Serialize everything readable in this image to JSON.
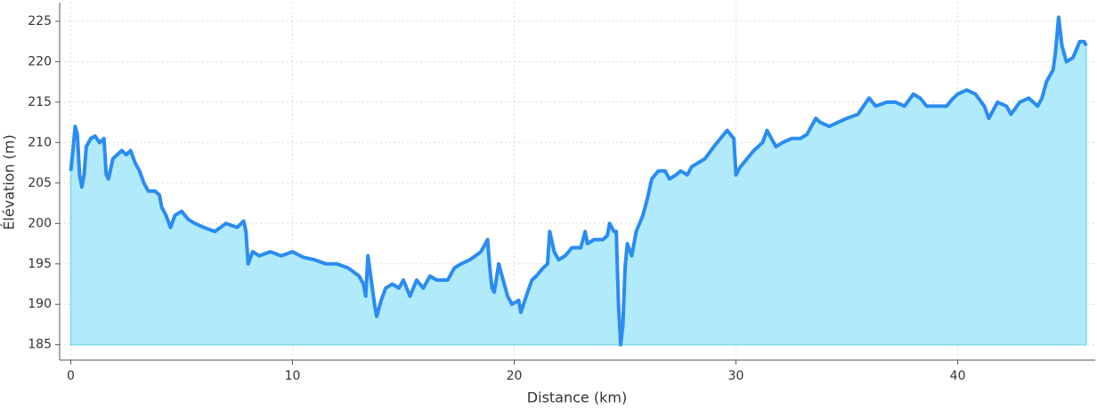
{
  "chart_data": {
    "type": "area-line",
    "x_label": "Distance (km)",
    "y_label": "Élévation (m)",
    "line_color": "#2a8cf2",
    "fill_color": "#b0eafb",
    "fill_edge_color": "#7fdcea",
    "grid": true,
    "xlim": [
      -0.5,
      46.2
    ],
    "xticks": [
      0,
      10,
      20,
      30,
      40
    ],
    "ylim": [
      183.1,
      227.3
    ],
    "yticks": [
      185,
      190,
      195,
      200,
      205,
      210,
      215,
      220,
      225
    ],
    "x": [
      0,
      0.1,
      0.2,
      0.3,
      0.4,
      0.5,
      0.6,
      0.7,
      0.9,
      1.1,
      1.3,
      1.5,
      1.6,
      1.7,
      1.9,
      2.1,
      2.3,
      2.5,
      2.7,
      2.9,
      3.1,
      3.3,
      3.5,
      3.8,
      4.0,
      4.1,
      4.3,
      4.5,
      4.7,
      5.0,
      5.3,
      5.6,
      6.0,
      6.5,
      7.0,
      7.5,
      7.8,
      7.9,
      8.0,
      8.2,
      8.5,
      9.0,
      9.5,
      10.0,
      10.5,
      11.0,
      11.5,
      12.0,
      12.5,
      13.0,
      13.2,
      13.3,
      13.4,
      13.5,
      13.7,
      13.8,
      14.0,
      14.2,
      14.5,
      14.8,
      15.0,
      15.3,
      15.6,
      15.9,
      16.2,
      16.5,
      17.0,
      17.3,
      17.6,
      18.0,
      18.5,
      18.8,
      18.9,
      19.0,
      19.1,
      19.3,
      19.5,
      19.7,
      19.9,
      20.2,
      20.3,
      20.6,
      20.8,
      21.0,
      21.3,
      21.5,
      21.6,
      21.8,
      22.0,
      22.3,
      22.6,
      23.0,
      23.2,
      23.3,
      23.6,
      24.0,
      24.2,
      24.3,
      24.5,
      24.6,
      24.7,
      24.8,
      24.9,
      25.0,
      25.1,
      25.3,
      25.5,
      25.8,
      26.0,
      26.2,
      26.5,
      26.8,
      27.0,
      27.3,
      27.5,
      27.8,
      28.0,
      28.3,
      28.6,
      29.0,
      29.3,
      29.6,
      29.9,
      30.0,
      30.2,
      30.5,
      30.8,
      31.0,
      31.2,
      31.4,
      31.6,
      31.8,
      32.1,
      32.5,
      32.9,
      33.2,
      33.4,
      33.6,
      33.8,
      34.2,
      34.6,
      35.0,
      35.5,
      36.0,
      36.3,
      36.8,
      37.2,
      37.6,
      38.0,
      38.3,
      38.6,
      39.0,
      39.5,
      39.8,
      40.0,
      40.4,
      40.8,
      41.2,
      41.4,
      41.6,
      41.8,
      42.2,
      42.4,
      42.8,
      43.2,
      43.6,
      43.8,
      44.0,
      44.3,
      44.4,
      44.5,
      44.55,
      44.7,
      44.9,
      45.2,
      45.5,
      45.7,
      45.8
    ],
    "values": [
      206.5,
      209,
      212,
      211,
      206,
      204.5,
      206,
      209.5,
      210.5,
      210.8,
      210,
      210.5,
      206,
      205.5,
      208,
      208.5,
      209,
      208.5,
      209,
      207.5,
      206.5,
      205,
      204,
      204,
      203.5,
      202,
      201,
      199.5,
      201,
      201.5,
      200.5,
      200,
      199.5,
      199,
      200,
      199.5,
      200.3,
      199,
      195,
      196.5,
      196,
      196.5,
      196,
      196.5,
      195.8,
      195.5,
      195,
      195,
      194.5,
      193.5,
      192.5,
      191,
      196,
      194,
      190,
      188.5,
      190.5,
      192,
      192.5,
      192,
      193,
      191,
      193,
      192,
      193.5,
      193,
      193,
      194.5,
      195,
      195.5,
      196.5,
      198,
      194.5,
      192,
      191.5,
      195,
      193,
      191,
      190,
      190.5,
      189,
      191.5,
      193,
      193.5,
      194.5,
      195,
      199,
      196.5,
      195.5,
      196,
      197,
      197,
      199,
      197.5,
      198,
      198,
      198.5,
      200,
      199,
      199,
      190,
      185,
      187.5,
      194.5,
      197.5,
      196,
      199,
      201,
      203,
      205.5,
      206.5,
      206.5,
      205.5,
      206,
      206.5,
      206,
      207,
      207.5,
      208,
      209.5,
      210.5,
      211.5,
      210.5,
      206,
      207,
      208,
      209,
      209.5,
      210,
      211.5,
      210.5,
      209.5,
      210,
      210.5,
      210.5,
      211,
      212,
      213,
      212.5,
      212,
      212.5,
      213,
      213.5,
      215.5,
      214.5,
      215,
      215,
      214.5,
      216,
      215.5,
      214.5,
      214.5,
      214.5,
      215.5,
      216,
      216.5,
      216,
      214.5,
      213,
      214,
      215,
      214.5,
      213.5,
      215,
      215.5,
      214.5,
      215.5,
      217.5,
      219,
      221,
      224,
      225.5,
      222,
      220,
      220.5,
      222.5,
      222.5,
      222
    ]
  }
}
